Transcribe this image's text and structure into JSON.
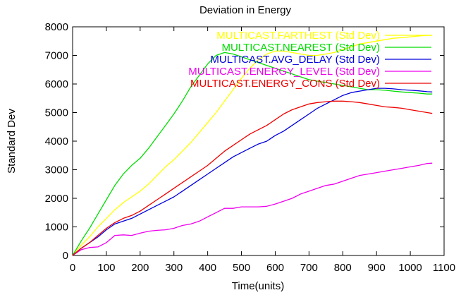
{
  "chart_data": {
    "type": "line",
    "title": "Deviation in Energy",
    "xlabel": "Time(units)",
    "ylabel": "Standard Dev",
    "xlim": [
      0,
      1100
    ],
    "ylim": [
      0,
      8000
    ],
    "xticks": [
      0,
      100,
      200,
      300,
      400,
      500,
      600,
      700,
      800,
      900,
      1000,
      1100
    ],
    "yticks": [
      0,
      1000,
      2000,
      3000,
      4000,
      5000,
      6000,
      7000,
      8000
    ],
    "grid": false,
    "legend_position": "top-right",
    "series": [
      {
        "name": "MULTICAST.FARTHEST (Std Dev)",
        "color": "#ffff00",
        "x": [
          0,
          25,
          50,
          75,
          100,
          125,
          150,
          175,
          200,
          225,
          250,
          275,
          300,
          325,
          350,
          375,
          400,
          425,
          450,
          475,
          500,
          525,
          550,
          575,
          600,
          625,
          650,
          675,
          700,
          725,
          750,
          775,
          800,
          825,
          850,
          875,
          900,
          925,
          950,
          975,
          1000,
          1025,
          1050,
          1065
        ],
        "y": [
          0,
          350,
          650,
          1000,
          1300,
          1600,
          1850,
          2050,
          2250,
          2500,
          2800,
          3100,
          3350,
          3650,
          3950,
          4300,
          4650,
          5000,
          5400,
          5800,
          6200,
          6550,
          6850,
          7050,
          7150,
          7150,
          7100,
          7050,
          7000,
          7000,
          7050,
          7100,
          7200,
          7300,
          7400,
          7450,
          7500,
          7550,
          7600,
          7620,
          7650,
          7680,
          7700,
          7700
        ]
      },
      {
        "name": "MULTICAST.NEAREST (Std Dev)",
        "color": "#00dd00",
        "x": [
          0,
          25,
          50,
          75,
          100,
          125,
          150,
          175,
          200,
          225,
          250,
          275,
          300,
          325,
          350,
          375,
          400,
          425,
          450,
          475,
          500,
          525,
          550,
          575,
          600,
          625,
          650,
          675,
          700,
          725,
          750,
          775,
          800,
          825,
          850,
          875,
          900,
          925,
          950,
          975,
          1000,
          1025,
          1050,
          1065
        ],
        "y": [
          0,
          500,
          950,
          1450,
          1950,
          2450,
          2850,
          3150,
          3400,
          3750,
          4150,
          4550,
          4950,
          5400,
          5900,
          6300,
          6700,
          7000,
          7100,
          7050,
          6950,
          6850,
          6750,
          6650,
          6550,
          6450,
          6350,
          6250,
          6150,
          6100,
          6050,
          6000,
          5950,
          5900,
          5850,
          5800,
          5800,
          5780,
          5750,
          5720,
          5700,
          5680,
          5650,
          5650
        ]
      },
      {
        "name": "MULTICAST.AVG_DELAY (Std Dev)",
        "color": "#0000dd",
        "x": [
          0,
          25,
          50,
          75,
          100,
          125,
          150,
          175,
          200,
          225,
          250,
          275,
          300,
          325,
          350,
          375,
          400,
          425,
          450,
          475,
          500,
          525,
          550,
          575,
          600,
          625,
          650,
          675,
          700,
          725,
          750,
          775,
          800,
          825,
          850,
          875,
          900,
          925,
          950,
          975,
          1000,
          1025,
          1050,
          1065
        ],
        "y": [
          0,
          250,
          450,
          650,
          900,
          1100,
          1200,
          1300,
          1450,
          1600,
          1750,
          1900,
          2050,
          2250,
          2450,
          2650,
          2850,
          3050,
          3250,
          3450,
          3600,
          3750,
          3900,
          4000,
          4200,
          4350,
          4550,
          4750,
          4950,
          5150,
          5300,
          5450,
          5600,
          5700,
          5750,
          5800,
          5850,
          5850,
          5830,
          5800,
          5780,
          5760,
          5730,
          5720
        ]
      },
      {
        "name": "MULTICAST.ENERGY_LEVEL (Std Dev)",
        "color": "#ee00ee",
        "x": [
          0,
          25,
          50,
          75,
          100,
          125,
          150,
          175,
          200,
          225,
          250,
          275,
          300,
          325,
          350,
          375,
          400,
          425,
          450,
          475,
          500,
          525,
          550,
          575,
          600,
          625,
          650,
          675,
          700,
          725,
          750,
          775,
          800,
          825,
          850,
          875,
          900,
          925,
          950,
          975,
          1000,
          1025,
          1050,
          1065
        ],
        "y": [
          0,
          200,
          280,
          300,
          450,
          700,
          720,
          700,
          780,
          850,
          880,
          900,
          950,
          1050,
          1100,
          1200,
          1350,
          1500,
          1650,
          1650,
          1700,
          1700,
          1700,
          1720,
          1800,
          1900,
          2000,
          2150,
          2250,
          2350,
          2450,
          2500,
          2600,
          2700,
          2800,
          2850,
          2900,
          2950,
          3000,
          3050,
          3100,
          3150,
          3220,
          3230
        ]
      },
      {
        "name": "MULTICAST.ENERGY_CONS (Std Dev)",
        "color": "#ee0000",
        "x": [
          0,
          25,
          50,
          75,
          100,
          125,
          150,
          175,
          200,
          225,
          250,
          275,
          300,
          325,
          350,
          375,
          400,
          425,
          450,
          475,
          500,
          525,
          550,
          575,
          600,
          625,
          650,
          675,
          700,
          725,
          750,
          775,
          800,
          825,
          850,
          875,
          900,
          925,
          950,
          975,
          1000,
          1025,
          1050,
          1065
        ],
        "y": [
          0,
          250,
          450,
          700,
          950,
          1150,
          1300,
          1400,
          1550,
          1750,
          1950,
          2150,
          2350,
          2550,
          2750,
          2950,
          3150,
          3400,
          3650,
          3850,
          4050,
          4250,
          4400,
          4550,
          4750,
          4950,
          5100,
          5200,
          5300,
          5350,
          5380,
          5400,
          5400,
          5380,
          5350,
          5300,
          5250,
          5200,
          5180,
          5150,
          5100,
          5050,
          5000,
          4970
        ]
      }
    ]
  }
}
